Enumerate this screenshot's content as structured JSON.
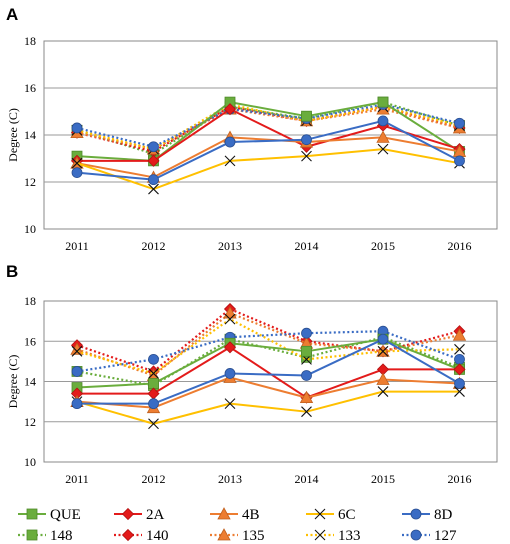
{
  "colors": {
    "QUE": "#6aad3d",
    "2A": "#e31b1b",
    "4B": "#ed7d31",
    "6C": "#ffc000",
    "8D": "#3a6cc4",
    "148": "#6aad3d",
    "140": "#e31b1b",
    "135": "#ed7d31",
    "133": "#ffc000",
    "127": "#3a6cc4"
  },
  "legend": {
    "row1": [
      {
        "name": "QUE",
        "marker": "square",
        "style": "solid"
      },
      {
        "name": "2A",
        "marker": "diamond",
        "style": "solid"
      },
      {
        "name": "4B",
        "marker": "triangle",
        "style": "solid"
      },
      {
        "name": "6C",
        "marker": "x",
        "style": "solid"
      },
      {
        "name": "8D",
        "marker": "circle",
        "style": "solid"
      }
    ],
    "row2": [
      {
        "name": "148",
        "marker": "square",
        "style": "dotted"
      },
      {
        "name": "140",
        "marker": "diamond",
        "style": "dotted"
      },
      {
        "name": "135",
        "marker": "triangle",
        "style": "dotted"
      },
      {
        "name": "133",
        "marker": "x",
        "style": "dotted"
      },
      {
        "name": "127",
        "marker": "circle",
        "style": "dotted"
      }
    ]
  },
  "chart_data": [
    {
      "panel": "A",
      "type": "line",
      "ylabel": "Degree (C)",
      "ylim": [
        10,
        18
      ],
      "yticks": [
        10,
        12,
        14,
        16,
        18
      ],
      "grid": true,
      "categories": [
        "2011",
        "2012",
        "2013",
        "2014",
        "2015",
        "2016"
      ],
      "series": [
        {
          "name": "QUE",
          "values": [
            13.1,
            12.9,
            15.4,
            14.8,
            15.4,
            13.3
          ]
        },
        {
          "name": "2A",
          "values": [
            12.9,
            12.9,
            15.1,
            13.5,
            14.4,
            13.4
          ]
        },
        {
          "name": "4B",
          "values": [
            12.8,
            12.2,
            13.9,
            13.7,
            13.9,
            13.3
          ]
        },
        {
          "name": "6C",
          "values": [
            12.8,
            11.7,
            12.9,
            13.1,
            13.4,
            12.8
          ]
        },
        {
          "name": "8D",
          "values": [
            12.4,
            12.1,
            13.7,
            13.8,
            14.6,
            12.9
          ]
        },
        {
          "name": "148",
          "values": [
            14.2,
            13.2,
            15.2,
            14.7,
            15.4,
            14.4
          ]
        },
        {
          "name": "140",
          "values": [
            14.1,
            13.3,
            15.2,
            14.6,
            15.2,
            14.3
          ]
        },
        {
          "name": "135",
          "values": [
            14.1,
            13.4,
            15.1,
            14.6,
            15.1,
            14.3
          ]
        },
        {
          "name": "133",
          "values": [
            14.2,
            13.4,
            15.3,
            14.6,
            15.2,
            14.4
          ]
        },
        {
          "name": "127",
          "values": [
            14.3,
            13.5,
            15.1,
            14.7,
            15.3,
            14.5
          ]
        }
      ]
    },
    {
      "panel": "B",
      "type": "line",
      "ylabel": "Degree (C)",
      "ylim": [
        10,
        18
      ],
      "yticks": [
        10,
        12,
        14,
        16,
        18
      ],
      "grid": true,
      "categories": [
        "2011",
        "2012",
        "2013",
        "2014",
        "2015",
        "2016"
      ],
      "series": [
        {
          "name": "QUE",
          "values": [
            13.7,
            13.9,
            15.9,
            15.5,
            16.1,
            14.6
          ]
        },
        {
          "name": "2A",
          "values": [
            13.4,
            13.4,
            15.7,
            13.2,
            14.6,
            14.6
          ]
        },
        {
          "name": "4B",
          "values": [
            13.0,
            12.7,
            14.2,
            13.2,
            14.1,
            13.9
          ]
        },
        {
          "name": "6C",
          "values": [
            13.0,
            11.9,
            12.9,
            12.5,
            13.5,
            13.5
          ]
        },
        {
          "name": "8D",
          "values": [
            12.9,
            12.9,
            14.4,
            14.3,
            16.1,
            13.9
          ]
        },
        {
          "name": "148",
          "values": [
            14.5,
            13.8,
            16.1,
            15.2,
            16.2,
            14.7
          ]
        },
        {
          "name": "140",
          "values": [
            15.8,
            14.5,
            17.6,
            16.0,
            15.5,
            16.5
          ]
        },
        {
          "name": "135",
          "values": [
            15.6,
            14.3,
            17.4,
            15.9,
            15.5,
            16.3
          ]
        },
        {
          "name": "133",
          "values": [
            15.5,
            14.4,
            17.1,
            15.1,
            15.5,
            15.6
          ]
        },
        {
          "name": "127",
          "values": [
            14.5,
            15.1,
            16.2,
            16.4,
            16.5,
            15.1
          ]
        }
      ]
    }
  ]
}
